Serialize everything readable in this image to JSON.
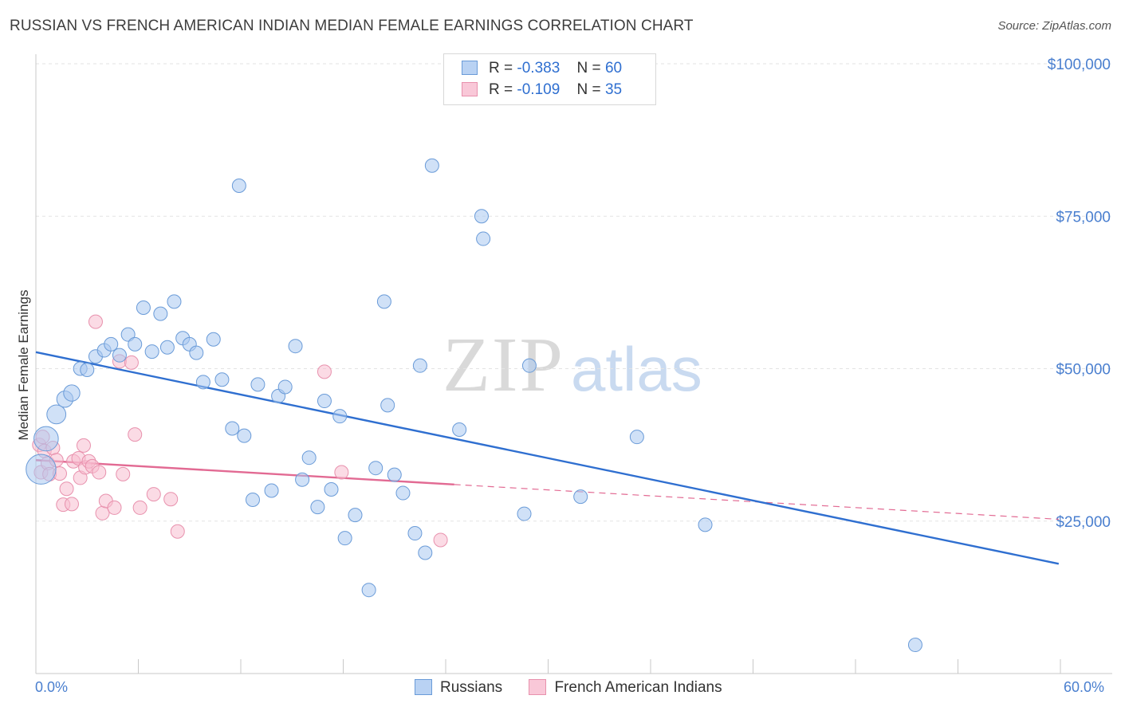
{
  "header": {
    "title": "RUSSIAN VS FRENCH AMERICAN INDIAN MEDIAN FEMALE EARNINGS CORRELATION CHART",
    "source": "Source: ZipAtlas.com"
  },
  "legend": {
    "rows": [
      {
        "r_label": "R =",
        "r_value": "-0.383",
        "n_label": "N =",
        "n_value": "60"
      },
      {
        "r_label": "R =",
        "r_value": "-0.109",
        "n_label": "N =",
        "n_value": "35"
      }
    ]
  },
  "bottom_legend": [
    "Russians",
    "French American Indians"
  ],
  "watermark": {
    "zip": "ZIP",
    "atlas": "atlas"
  },
  "x_axis": {
    "min_label": "0.0%",
    "max_label": "60.0%"
  },
  "colors": {
    "russians_fill": "#a9c8f0",
    "russians_stroke": "#6a9bd8",
    "russians_line": "#2f6fd0",
    "french_fill": "#f7bdd0",
    "french_stroke": "#e891ad",
    "french_line": "#e26a93",
    "grid": "#e3e3e3",
    "tick_label": "#4a7fcf"
  },
  "chart_data": {
    "type": "scatter",
    "title": "RUSSIAN VS FRENCH AMERICAN INDIAN MEDIAN FEMALE EARNINGS CORRELATION CHART",
    "xlabel": "",
    "ylabel": "Median Female Earnings",
    "xlim": [
      0,
      60
    ],
    "ylim": [
      0,
      100000
    ],
    "y_ticks": [
      25000,
      50000,
      75000,
      100000
    ],
    "y_tick_labels": [
      "$25,000",
      "$50,000",
      "$75,000",
      "$100,000"
    ],
    "grid": true,
    "legend_position": "top-center",
    "series": [
      {
        "name": "Russians",
        "R": -0.383,
        "N": 60,
        "trend": {
          "x": [
            0,
            59.9
          ],
          "y": [
            52700,
            18000
          ]
        },
        "points": [
          {
            "x": 0.3,
            "y": 33500,
            "s": 2.2
          },
          {
            "x": 0.6,
            "y": 38500,
            "s": 1.8
          },
          {
            "x": 1.2,
            "y": 42500,
            "s": 1.4
          },
          {
            "x": 1.7,
            "y": 45000,
            "s": 1.2
          },
          {
            "x": 2.1,
            "y": 46000,
            "s": 1.2
          },
          {
            "x": 2.6,
            "y": 50000,
            "s": 1
          },
          {
            "x": 3.0,
            "y": 49800,
            "s": 1
          },
          {
            "x": 3.5,
            "y": 52000,
            "s": 1
          },
          {
            "x": 4.0,
            "y": 53000,
            "s": 1
          },
          {
            "x": 4.4,
            "y": 54000,
            "s": 1
          },
          {
            "x": 4.9,
            "y": 52200,
            "s": 1
          },
          {
            "x": 5.4,
            "y": 55600,
            "s": 1
          },
          {
            "x": 5.8,
            "y": 54000,
            "s": 1
          },
          {
            "x": 6.3,
            "y": 60000,
            "s": 1
          },
          {
            "x": 6.8,
            "y": 52800,
            "s": 1
          },
          {
            "x": 7.3,
            "y": 59000,
            "s": 1
          },
          {
            "x": 7.7,
            "y": 53500,
            "s": 1
          },
          {
            "x": 8.1,
            "y": 61000,
            "s": 1
          },
          {
            "x": 8.6,
            "y": 55000,
            "s": 1
          },
          {
            "x": 9.0,
            "y": 54000,
            "s": 1
          },
          {
            "x": 9.4,
            "y": 52600,
            "s": 1
          },
          {
            "x": 9.8,
            "y": 47800,
            "s": 1
          },
          {
            "x": 10.4,
            "y": 54800,
            "s": 1
          },
          {
            "x": 10.9,
            "y": 48200,
            "s": 1
          },
          {
            "x": 11.5,
            "y": 40200,
            "s": 1
          },
          {
            "x": 11.9,
            "y": 80000,
            "s": 1
          },
          {
            "x": 12.2,
            "y": 39000,
            "s": 1
          },
          {
            "x": 12.7,
            "y": 28500,
            "s": 1
          },
          {
            "x": 13.0,
            "y": 47400,
            "s": 1
          },
          {
            "x": 13.8,
            "y": 30000,
            "s": 1
          },
          {
            "x": 14.2,
            "y": 45500,
            "s": 1
          },
          {
            "x": 14.6,
            "y": 47000,
            "s": 1
          },
          {
            "x": 15.2,
            "y": 53700,
            "s": 1
          },
          {
            "x": 15.6,
            "y": 31800,
            "s": 1
          },
          {
            "x": 16.0,
            "y": 35400,
            "s": 1
          },
          {
            "x": 16.5,
            "y": 27300,
            "s": 1
          },
          {
            "x": 16.9,
            "y": 44700,
            "s": 1
          },
          {
            "x": 17.3,
            "y": 30200,
            "s": 1
          },
          {
            "x": 17.8,
            "y": 42200,
            "s": 1
          },
          {
            "x": 18.1,
            "y": 22200,
            "s": 1
          },
          {
            "x": 18.7,
            "y": 26000,
            "s": 1
          },
          {
            "x": 19.5,
            "y": 13700,
            "s": 1
          },
          {
            "x": 19.9,
            "y": 33700,
            "s": 1
          },
          {
            "x": 20.4,
            "y": 61000,
            "s": 1
          },
          {
            "x": 20.6,
            "y": 44000,
            "s": 1
          },
          {
            "x": 21.0,
            "y": 32600,
            "s": 1
          },
          {
            "x": 21.5,
            "y": 29600,
            "s": 1
          },
          {
            "x": 22.2,
            "y": 23000,
            "s": 1
          },
          {
            "x": 22.5,
            "y": 50500,
            "s": 1
          },
          {
            "x": 22.8,
            "y": 19800,
            "s": 1
          },
          {
            "x": 23.2,
            "y": 83300,
            "s": 1
          },
          {
            "x": 24.8,
            "y": 40000,
            "s": 1
          },
          {
            "x": 26.1,
            "y": 75000,
            "s": 1
          },
          {
            "x": 26.2,
            "y": 71300,
            "s": 1
          },
          {
            "x": 28.6,
            "y": 26200,
            "s": 1
          },
          {
            "x": 28.9,
            "y": 50500,
            "s": 1
          },
          {
            "x": 31.9,
            "y": 29000,
            "s": 1
          },
          {
            "x": 35.2,
            "y": 38800,
            "s": 1
          },
          {
            "x": 39.2,
            "y": 24400,
            "s": 1
          },
          {
            "x": 51.5,
            "y": 4700,
            "s": 1
          }
        ]
      },
      {
        "name": "French American Indians",
        "R": -0.109,
        "N": 35,
        "trend": {
          "x": [
            0,
            24.5
          ],
          "y": [
            35000,
            31000
          ]
        },
        "trend_dashed": {
          "x": [
            24.5,
            59.9
          ],
          "y": [
            31000,
            25300
          ]
        },
        "points": [
          {
            "x": 0.2,
            "y": 37500,
            "s": 1
          },
          {
            "x": 0.3,
            "y": 33000,
            "s": 1
          },
          {
            "x": 0.5,
            "y": 36500,
            "s": 1
          },
          {
            "x": 0.7,
            "y": 34500,
            "s": 1
          },
          {
            "x": 0.8,
            "y": 32700,
            "s": 1
          },
          {
            "x": 1.0,
            "y": 37000,
            "s": 1
          },
          {
            "x": 1.2,
            "y": 35000,
            "s": 1
          },
          {
            "x": 1.4,
            "y": 32800,
            "s": 1
          },
          {
            "x": 1.6,
            "y": 27700,
            "s": 1
          },
          {
            "x": 1.8,
            "y": 30300,
            "s": 1
          },
          {
            "x": 2.1,
            "y": 27800,
            "s": 1
          },
          {
            "x": 2.2,
            "y": 34800,
            "s": 1
          },
          {
            "x": 2.5,
            "y": 35300,
            "s": 1
          },
          {
            "x": 2.6,
            "y": 32100,
            "s": 1
          },
          {
            "x": 2.8,
            "y": 37400,
            "s": 1
          },
          {
            "x": 2.9,
            "y": 33800,
            "s": 1
          },
          {
            "x": 3.1,
            "y": 34800,
            "s": 1
          },
          {
            "x": 3.3,
            "y": 34000,
            "s": 1
          },
          {
            "x": 3.5,
            "y": 57700,
            "s": 1
          },
          {
            "x": 3.7,
            "y": 33000,
            "s": 1
          },
          {
            "x": 3.9,
            "y": 26300,
            "s": 1
          },
          {
            "x": 4.1,
            "y": 28300,
            "s": 1
          },
          {
            "x": 4.6,
            "y": 27200,
            "s": 1
          },
          {
            "x": 4.9,
            "y": 51200,
            "s": 1
          },
          {
            "x": 5.1,
            "y": 32700,
            "s": 1
          },
          {
            "x": 5.6,
            "y": 51000,
            "s": 1
          },
          {
            "x": 5.8,
            "y": 39200,
            "s": 1
          },
          {
            "x": 6.1,
            "y": 27200,
            "s": 1
          },
          {
            "x": 6.9,
            "y": 29400,
            "s": 1
          },
          {
            "x": 7.9,
            "y": 28600,
            "s": 1
          },
          {
            "x": 8.3,
            "y": 23300,
            "s": 1
          },
          {
            "x": 16.9,
            "y": 49500,
            "s": 1
          },
          {
            "x": 17.9,
            "y": 33000,
            "s": 1
          },
          {
            "x": 23.7,
            "y": 21900,
            "s": 1
          },
          {
            "x": 0.4,
            "y": 38800,
            "s": 1
          }
        ]
      }
    ]
  }
}
